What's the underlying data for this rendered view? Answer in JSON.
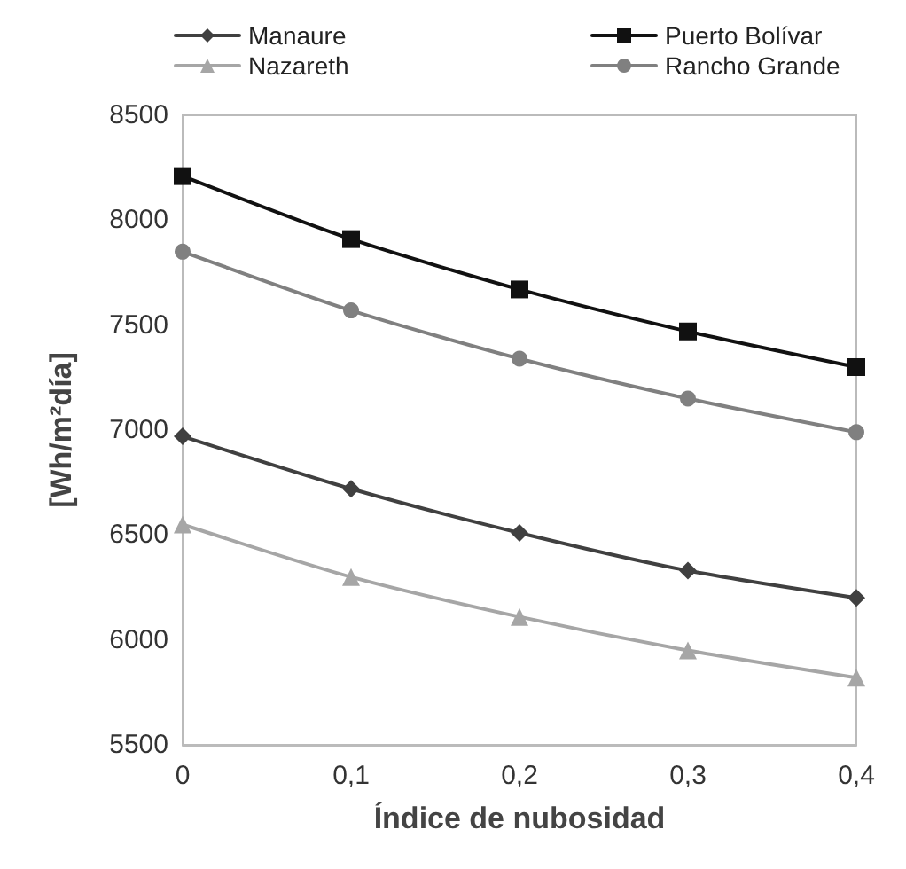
{
  "chart_data": {
    "type": "line",
    "xlabel": "Índice de nubosidad",
    "ylabel": "[Wh/m²día]",
    "x": [
      0,
      0.1,
      0.2,
      0.3,
      0.4
    ],
    "series": [
      {
        "name": "Manaure",
        "color": "#404040",
        "marker": "diamond",
        "values": [
          6970,
          6720,
          6510,
          6330,
          6200
        ]
      },
      {
        "name": "Puerto Bolívar",
        "color": "#111111",
        "marker": "square",
        "values": [
          8210,
          7910,
          7670,
          7470,
          7300
        ]
      },
      {
        "name": "Nazareth",
        "color": "#a6a6a6",
        "marker": "triangle",
        "values": [
          6550,
          6300,
          6110,
          5950,
          5820
        ]
      },
      {
        "name": "Rancho Grande",
        "color": "#808080",
        "marker": "circle",
        "values": [
          7850,
          7570,
          7340,
          7150,
          6990
        ]
      }
    ],
    "xlim": [
      0,
      0.4
    ],
    "xticks": [
      0,
      {
        "value": 0.1,
        "label": "0,1"
      },
      {
        "value": 0.2,
        "label": "0,2"
      },
      {
        "value": 0.3,
        "label": "0,3"
      },
      {
        "value": 0.4,
        "label": "0,4"
      }
    ],
    "ylim": [
      5500,
      8500
    ],
    "yticks": [
      5500,
      6000,
      6500,
      7000,
      7500,
      8000,
      8500
    ],
    "grid": false,
    "legend": "top",
    "line_style": "solid"
  }
}
